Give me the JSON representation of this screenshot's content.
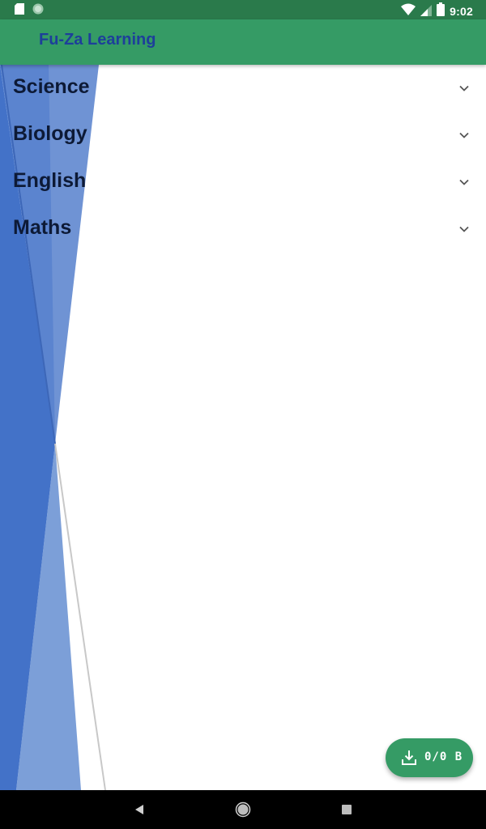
{
  "status_bar": {
    "time": "9:02",
    "left_icons": [
      "sd-card-icon",
      "sync-circle-icon"
    ],
    "right_icons": [
      "wifi-icon",
      "signal-icon",
      "battery-icon"
    ],
    "bg_color": "#2a7a4b"
  },
  "app_bar": {
    "title": "Fu-Za Learning",
    "bg_color": "#359b65",
    "title_color": "#1d3f9a"
  },
  "subjects": [
    {
      "label": "Science",
      "icon": "chevron-down-icon"
    },
    {
      "label": "Biology",
      "icon": "chevron-down-icon"
    },
    {
      "label": "English",
      "icon": "chevron-down-icon"
    },
    {
      "label": "Maths",
      "icon": "chevron-down-icon"
    }
  ],
  "download_fab": {
    "label": "0/0 B",
    "icon": "download-icon",
    "bg_color": "#359b65"
  },
  "nav_bar": {
    "buttons": [
      "back-icon",
      "home-icon",
      "recents-icon"
    ]
  },
  "colors": {
    "decor_blue_dark": "#4372c8",
    "decor_blue_light": "#7c9fd8"
  }
}
